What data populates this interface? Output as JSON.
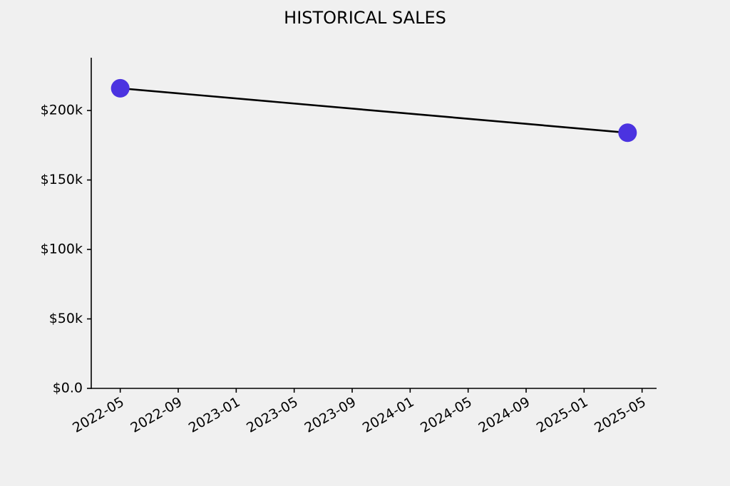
{
  "chart_data": {
    "type": "line",
    "title": "HISTORICAL SALES",
    "x": [
      "2022-05",
      "2025-04"
    ],
    "series": [
      {
        "values": [
          216000,
          184000
        ],
        "color": "#000000",
        "marker_color": "#4b33e0"
      }
    ],
    "xlim": [
      "2022-03",
      "2025-06"
    ],
    "xticks": [
      "2022-05",
      "2022-09",
      "2023-01",
      "2023-05",
      "2023-09",
      "2024-01",
      "2024-05",
      "2024-09",
      "2025-01",
      "2025-05"
    ],
    "ylim": [
      0,
      238000
    ],
    "yticks": [
      {
        "value": 0,
        "label": "$0.0"
      },
      {
        "value": 50000,
        "label": "$50k"
      },
      {
        "value": 100000,
        "label": "$100k"
      },
      {
        "value": 150000,
        "label": "$150k"
      },
      {
        "value": 200000,
        "label": "$200k"
      }
    ],
    "grid": false
  }
}
